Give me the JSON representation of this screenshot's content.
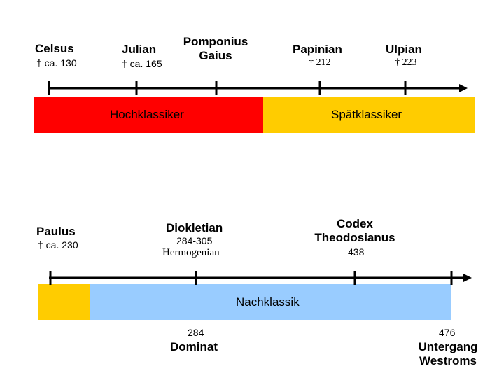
{
  "top": {
    "celsus": {
      "name": "Celsus",
      "death": "† ca. 130"
    },
    "julian": {
      "name": "Julian",
      "death": "† ca. 165"
    },
    "pomponius_gaius": {
      "name_line1": "Pomponius",
      "name_line2": "Gaius"
    },
    "papinian": {
      "name": "Papinian",
      "death": "† 212"
    },
    "ulpian": {
      "name": "Ulpian",
      "death": "† 223"
    },
    "bands": {
      "hochklassiker": "Hochklassiker",
      "spaetklassiker": "Spätklassiker"
    }
  },
  "bottom": {
    "paulus": {
      "name": "Paulus",
      "death": "† ca. 230"
    },
    "diokletian": {
      "name": "Diokletian",
      "years": "284-305",
      "sub": "Hermogenian"
    },
    "codex": {
      "name_line1": "Codex",
      "name_line2": "Theodosianus",
      "year": "438"
    },
    "band": {
      "nachklassik": "Nachklassik"
    },
    "dominat": {
      "year": "284",
      "name": "Dominat"
    },
    "untergang": {
      "year": "476",
      "name_line1": "Untergang",
      "name_line2": "Westroms"
    }
  },
  "colors": {
    "red": "#ff0000",
    "yellow": "#ffcc00",
    "light_blue": "#99ccff",
    "line": "#000000"
  }
}
